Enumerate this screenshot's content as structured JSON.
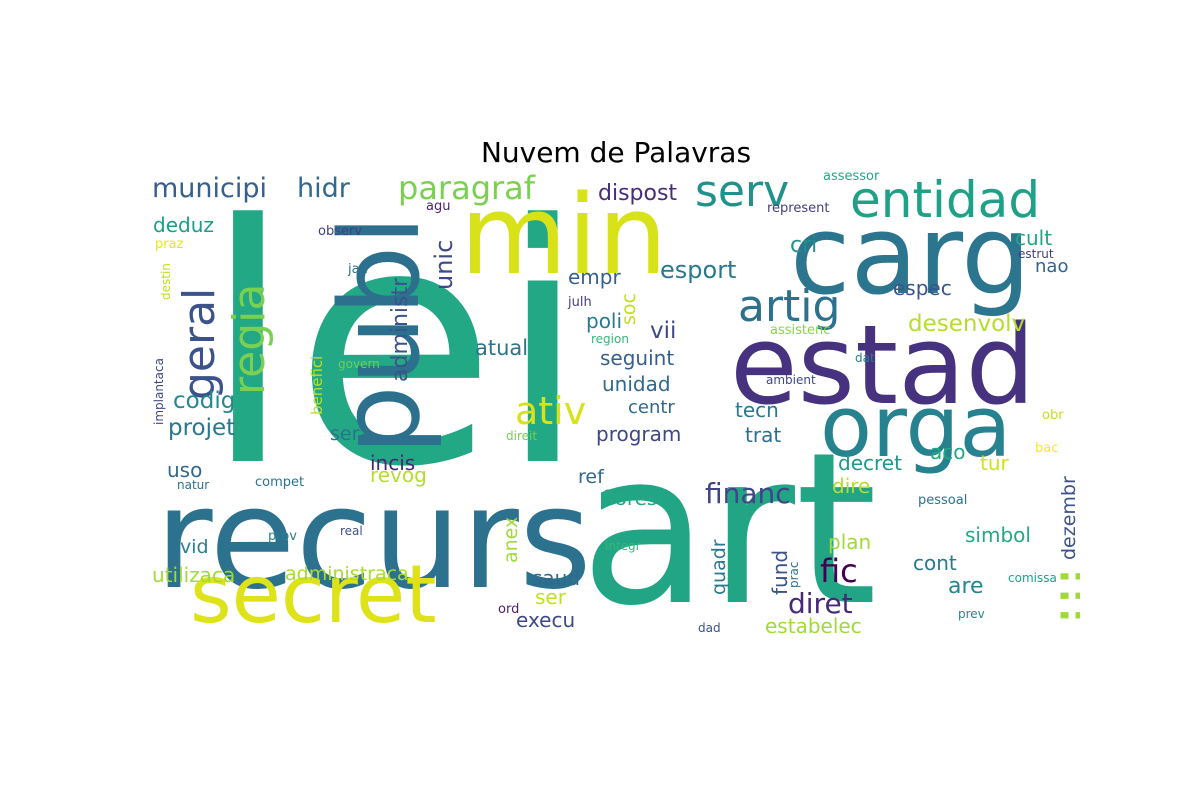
{
  "title": "Nuvem de Palavras",
  "colors": {
    "background": "#ffffff",
    "title": "#000000"
  },
  "words": [
    {
      "text": "lei",
      "color": "#22a884"
    },
    {
      "text": "art",
      "color": "#21a585"
    },
    {
      "text": "recurs",
      "color": "#2c728e"
    },
    {
      "text": "min",
      "color": "#d8e219"
    },
    {
      "text": "carg",
      "color": "#2b758e"
    },
    {
      "text": "publ",
      "color": "#2d708e"
    },
    {
      "text": "estad",
      "color": "#46327e"
    },
    {
      "text": "orga",
      "color": "#26828e"
    },
    {
      "text": "secret",
      "color": "#dde318"
    },
    {
      "text": "entidad",
      "color": "#1fa187"
    },
    {
      "text": "serv",
      "color": "#21918c"
    },
    {
      "text": "artig",
      "color": "#2c728e"
    },
    {
      "text": "regia",
      "color": "#7ad151"
    },
    {
      "text": "geral",
      "color": "#3b528b"
    },
    {
      "text": "paragraf",
      "color": "#7ad151"
    },
    {
      "text": "ativ",
      "color": "#d8e219"
    },
    {
      "text": "iii",
      "color": "#a0da39"
    },
    {
      "text": "financ",
      "color": "#414487"
    },
    {
      "text": "diret",
      "color": "#482878"
    },
    {
      "text": "fic",
      "color": "#440154"
    },
    {
      "text": "municipi",
      "color": "#355f8d"
    },
    {
      "text": "hidr",
      "color": "#31688e"
    },
    {
      "text": "dispost",
      "color": "#472d7b"
    },
    {
      "text": "esport",
      "color": "#2a788e"
    },
    {
      "text": "desenvolv",
      "color": "#b5de2b"
    },
    {
      "text": "unic",
      "color": "#3e4989"
    },
    {
      "text": "administr",
      "color": "#3b528b"
    },
    {
      "text": "deduz",
      "color": "#1e9b8a"
    },
    {
      "text": "codig",
      "color": "#23888e"
    },
    {
      "text": "projet",
      "color": "#2a788e"
    },
    {
      "text": "sera",
      "color": "#2c728e"
    },
    {
      "text": "incis",
      "color": "#482475"
    },
    {
      "text": "revog",
      "color": "#b5de2b"
    },
    {
      "text": "uso",
      "color": "#31688e"
    },
    {
      "text": "utilizaca",
      "color": "#a0da39"
    },
    {
      "text": "administraca",
      "color": "#a8db34"
    },
    {
      "text": "vid",
      "color": "#26828e"
    },
    {
      "text": "atual",
      "color": "#2c728e"
    },
    {
      "text": "seguint",
      "color": "#355f8d"
    },
    {
      "text": "unidad",
      "color": "#31688e"
    },
    {
      "text": "centr",
      "color": "#31688e"
    },
    {
      "text": "program",
      "color": "#3f4788"
    },
    {
      "text": "poli",
      "color": "#2a788e"
    },
    {
      "text": "vii",
      "color": "#3e4989"
    },
    {
      "text": "empr",
      "color": "#355f8d"
    },
    {
      "text": "soc",
      "color": "#c2df23"
    },
    {
      "text": "cri",
      "color": "#21918c"
    },
    {
      "text": "espec",
      "color": "#3a548c"
    },
    {
      "text": "cult",
      "color": "#21a685"
    },
    {
      "text": "nao",
      "color": "#33638d"
    },
    {
      "text": "tecn",
      "color": "#2a788e"
    },
    {
      "text": "trat",
      "color": "#2d708e"
    },
    {
      "text": "decret",
      "color": "#1f988b"
    },
    {
      "text": "aco",
      "color": "#22a884"
    },
    {
      "text": "tur",
      "color": "#d0e11c"
    },
    {
      "text": "dire",
      "color": "#b5de2b"
    },
    {
      "text": "ref",
      "color": "#31688e"
    },
    {
      "text": "florest",
      "color": "#22a884"
    },
    {
      "text": "anex",
      "color": "#a0da39"
    },
    {
      "text": "quadr",
      "color": "#2a788e"
    },
    {
      "text": "fund",
      "color": "#3b528b"
    },
    {
      "text": "plan",
      "color": "#a0da39"
    },
    {
      "text": "simbol",
      "color": "#22a884"
    },
    {
      "text": "dezembr",
      "color": "#3b528b"
    },
    {
      "text": "cont",
      "color": "#2a788e"
    },
    {
      "text": "are",
      "color": "#23888e"
    },
    {
      "text": "saud",
      "color": "#31688e"
    },
    {
      "text": "ser",
      "color": "#c2df23"
    },
    {
      "text": "execu",
      "color": "#3e4989"
    },
    {
      "text": "estabelec",
      "color": "#a0da39"
    },
    {
      "text": "assessor",
      "color": "#22a884"
    },
    {
      "text": "represent",
      "color": "#433e85"
    },
    {
      "text": "agu",
      "color": "#482475"
    },
    {
      "text": "observ",
      "color": "#433e85"
    },
    {
      "text": "praz",
      "color": "#e5e419"
    },
    {
      "text": "destin",
      "color": "#bddf26"
    },
    {
      "text": "jan",
      "color": "#2c728e"
    },
    {
      "text": "julh",
      "color": "#433e85"
    },
    {
      "text": "region",
      "color": "#35b779"
    },
    {
      "text": "assistenc",
      "color": "#86d549"
    },
    {
      "text": "dat",
      "color": "#27808e"
    },
    {
      "text": "estrut",
      "color": "#433e85"
    },
    {
      "text": "implantaca",
      "color": "#3f4788"
    },
    {
      "text": "benefici",
      "color": "#bddf26"
    },
    {
      "text": "govern",
      "color": "#6ece58"
    },
    {
      "text": "ambient",
      "color": "#3f4788"
    },
    {
      "text": "direit",
      "color": "#75d054"
    },
    {
      "text": "obr",
      "color": "#c8e020"
    },
    {
      "text": "bac",
      "color": "#fde725"
    },
    {
      "text": "natur",
      "color": "#2c728e"
    },
    {
      "text": "compet",
      "color": "#2c728e"
    },
    {
      "text": "pessoal",
      "color": "#2c728e"
    },
    {
      "text": "prov",
      "color": "#27808e"
    },
    {
      "text": "real",
      "color": "#3b528b"
    },
    {
      "text": "integr",
      "color": "#35b779"
    },
    {
      "text": "prac",
      "color": "#2c728e"
    },
    {
      "text": "comissa",
      "color": "#1f9e89"
    },
    {
      "text": "ord",
      "color": "#481f70"
    },
    {
      "text": "dad",
      "color": "#3b528b"
    },
    {
      "text": "prev",
      "color": "#24868e"
    },
    {
      "text": "dot-1",
      "color": "#1fa187"
    },
    {
      "text": "dot-2",
      "color": "#dde318"
    }
  ]
}
